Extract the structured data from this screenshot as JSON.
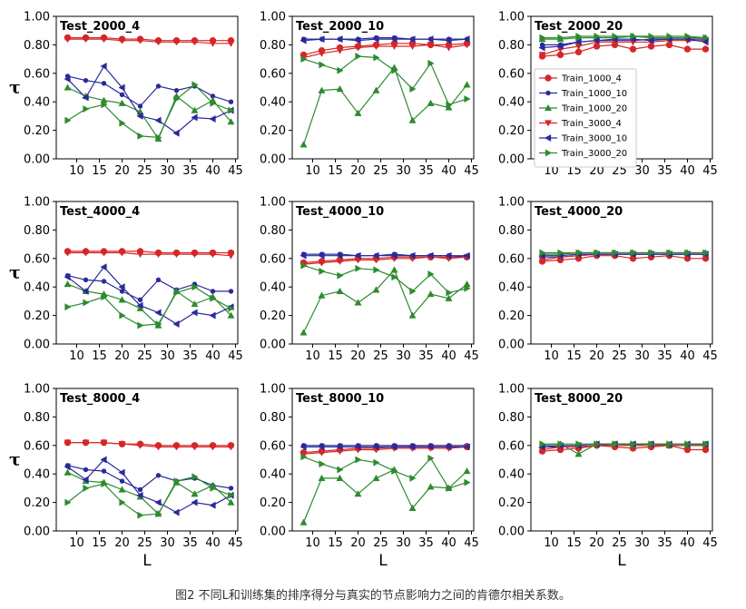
{
  "figure": {
    "caption": "图2 不同L和训练集的排序得分与真实的节点影响力之间的肯德尔相关系数。",
    "ylabel": "τ",
    "xlabel": "L"
  },
  "chart_data": {
    "type": "line",
    "x": [
      8,
      12,
      16,
      20,
      24,
      28,
      32,
      36,
      40,
      44
    ],
    "x_ticks": [
      "10",
      "15",
      "20",
      "25",
      "30",
      "35",
      "40",
      "45"
    ],
    "x_tick_values": [
      10,
      15,
      20,
      25,
      30,
      35,
      40,
      45
    ],
    "xlim": [
      5.5,
      45.5
    ],
    "ylim": [
      0,
      1.0
    ],
    "y_ticks": [
      "0.00",
      "0.20",
      "0.40",
      "0.60",
      "0.80",
      "1.00"
    ],
    "grid": false,
    "series_styles": [
      {
        "name": "Train_1000_4",
        "color": "#d62728",
        "marker": "circle"
      },
      {
        "name": "Train_1000_10",
        "color": "#2a2a9c",
        "marker": "dot"
      },
      {
        "name": "Train_1000_20",
        "color": "#2e8b2e",
        "marker": "triangle"
      },
      {
        "name": "Train_3000_4",
        "color": "#d62728",
        "marker": "dtriangle"
      },
      {
        "name": "Train_3000_10",
        "color": "#2a2a9c",
        "marker": "ltriangle"
      },
      {
        "name": "Train_3000_20",
        "color": "#2e8b2e",
        "marker": "rtriangle"
      }
    ],
    "panels": [
      {
        "title": "Test_2000_4",
        "series": [
          [
            0.85,
            0.85,
            0.85,
            0.84,
            0.84,
            0.83,
            0.83,
            0.83,
            0.83,
            0.83
          ],
          [
            0.58,
            0.55,
            0.53,
            0.45,
            0.37,
            0.51,
            0.48,
            0.51,
            0.44,
            0.4
          ],
          [
            0.5,
            0.44,
            0.41,
            0.39,
            0.33,
            0.14,
            0.44,
            0.34,
            0.41,
            0.26
          ],
          [
            0.84,
            0.84,
            0.84,
            0.83,
            0.83,
            0.82,
            0.82,
            0.82,
            0.81,
            0.81
          ],
          [
            0.56,
            0.43,
            0.65,
            0.5,
            0.3,
            0.27,
            0.18,
            0.29,
            0.28,
            0.34
          ],
          [
            0.27,
            0.35,
            0.38,
            0.25,
            0.16,
            0.15,
            0.42,
            0.52,
            0.39,
            0.34
          ]
        ]
      },
      {
        "title": "Test_2000_10",
        "series": [
          [
            0.73,
            0.76,
            0.78,
            0.79,
            0.8,
            0.81,
            0.81,
            0.8,
            0.8,
            0.81
          ],
          [
            0.84,
            0.84,
            0.84,
            0.84,
            0.85,
            0.85,
            0.84,
            0.84,
            0.84,
            0.84
          ],
          [
            0.1,
            0.48,
            0.49,
            0.32,
            0.48,
            0.64,
            0.27,
            0.39,
            0.36,
            0.52
          ],
          [
            0.71,
            0.74,
            0.76,
            0.78,
            0.79,
            0.79,
            0.79,
            0.8,
            0.78,
            0.8
          ],
          [
            0.83,
            0.84,
            0.84,
            0.83,
            0.84,
            0.84,
            0.84,
            0.84,
            0.83,
            0.84
          ],
          [
            0.7,
            0.66,
            0.62,
            0.72,
            0.71,
            0.62,
            0.49,
            0.67,
            0.38,
            0.42
          ]
        ]
      },
      {
        "title": "Test_2000_20",
        "series": [
          [
            0.72,
            0.73,
            0.75,
            0.79,
            0.8,
            0.77,
            0.79,
            0.8,
            0.77,
            0.77
          ],
          [
            0.8,
            0.8,
            0.82,
            0.83,
            0.83,
            0.83,
            0.84,
            0.84,
            0.84,
            0.84
          ],
          [
            0.84,
            0.84,
            0.85,
            0.85,
            0.85,
            0.86,
            0.85,
            0.85,
            0.85,
            0.85
          ],
          [
            0.73,
            0.77,
            0.79,
            0.82,
            0.82,
            0.82,
            0.82,
            0.83,
            0.83,
            0.83
          ],
          [
            0.78,
            0.79,
            0.82,
            0.83,
            0.84,
            0.84,
            0.83,
            0.84,
            0.84,
            0.82
          ],
          [
            0.85,
            0.85,
            0.86,
            0.86,
            0.86,
            0.86,
            0.86,
            0.86,
            0.86,
            0.85
          ]
        ]
      },
      {
        "title": "Test_4000_4",
        "series": [
          [
            0.65,
            0.65,
            0.65,
            0.65,
            0.65,
            0.64,
            0.64,
            0.64,
            0.64,
            0.64
          ],
          [
            0.48,
            0.45,
            0.44,
            0.37,
            0.31,
            0.45,
            0.38,
            0.42,
            0.37,
            0.37
          ],
          [
            0.42,
            0.37,
            0.35,
            0.31,
            0.25,
            0.13,
            0.37,
            0.28,
            0.33,
            0.2
          ],
          [
            0.64,
            0.64,
            0.64,
            0.64,
            0.63,
            0.63,
            0.63,
            0.63,
            0.63,
            0.62
          ],
          [
            0.47,
            0.37,
            0.54,
            0.4,
            0.27,
            0.22,
            0.14,
            0.22,
            0.2,
            0.26
          ],
          [
            0.26,
            0.29,
            0.33,
            0.2,
            0.13,
            0.14,
            0.36,
            0.4,
            0.32,
            0.25
          ]
        ]
      },
      {
        "title": "Test_4000_10",
        "series": [
          [
            0.57,
            0.58,
            0.59,
            0.6,
            0.6,
            0.61,
            0.61,
            0.61,
            0.61,
            0.61
          ],
          [
            0.63,
            0.63,
            0.63,
            0.62,
            0.62,
            0.63,
            0.62,
            0.62,
            0.62,
            0.61
          ],
          [
            0.08,
            0.34,
            0.37,
            0.29,
            0.38,
            0.52,
            0.2,
            0.35,
            0.32,
            0.42
          ],
          [
            0.56,
            0.57,
            0.58,
            0.59,
            0.59,
            0.6,
            0.6,
            0.61,
            0.6,
            0.61
          ],
          [
            0.62,
            0.62,
            0.62,
            0.62,
            0.62,
            0.62,
            0.62,
            0.62,
            0.62,
            0.62
          ],
          [
            0.55,
            0.51,
            0.48,
            0.53,
            0.52,
            0.47,
            0.37,
            0.49,
            0.36,
            0.39
          ]
        ]
      },
      {
        "title": "Test_4000_20",
        "series": [
          [
            0.58,
            0.59,
            0.6,
            0.62,
            0.62,
            0.6,
            0.61,
            0.62,
            0.6,
            0.6
          ],
          [
            0.61,
            0.61,
            0.62,
            0.63,
            0.63,
            0.63,
            0.63,
            0.63,
            0.63,
            0.63
          ],
          [
            0.63,
            0.63,
            0.64,
            0.64,
            0.64,
            0.64,
            0.64,
            0.64,
            0.64,
            0.64
          ],
          [
            0.59,
            0.61,
            0.62,
            0.63,
            0.63,
            0.63,
            0.63,
            0.63,
            0.63,
            0.63
          ],
          [
            0.62,
            0.62,
            0.63,
            0.63,
            0.63,
            0.63,
            0.63,
            0.63,
            0.63,
            0.63
          ],
          [
            0.64,
            0.64,
            0.64,
            0.64,
            0.64,
            0.64,
            0.64,
            0.64,
            0.64,
            0.64
          ]
        ]
      },
      {
        "title": "Test_8000_4",
        "series": [
          [
            0.62,
            0.62,
            0.62,
            0.61,
            0.61,
            0.6,
            0.6,
            0.6,
            0.6,
            0.6
          ],
          [
            0.46,
            0.43,
            0.42,
            0.35,
            0.29,
            0.39,
            0.35,
            0.37,
            0.32,
            0.3
          ],
          [
            0.41,
            0.35,
            0.34,
            0.29,
            0.24,
            0.12,
            0.34,
            0.26,
            0.32,
            0.2
          ],
          [
            0.62,
            0.62,
            0.62,
            0.61,
            0.6,
            0.59,
            0.59,
            0.59,
            0.59,
            0.59
          ],
          [
            0.45,
            0.36,
            0.5,
            0.41,
            0.25,
            0.2,
            0.13,
            0.2,
            0.18,
            0.25
          ],
          [
            0.2,
            0.3,
            0.33,
            0.2,
            0.11,
            0.12,
            0.35,
            0.38,
            0.3,
            0.25
          ]
        ]
      },
      {
        "title": "Test_8000_10",
        "series": [
          [
            0.55,
            0.56,
            0.57,
            0.58,
            0.58,
            0.59,
            0.59,
            0.59,
            0.59,
            0.59
          ],
          [
            0.6,
            0.6,
            0.6,
            0.6,
            0.6,
            0.6,
            0.6,
            0.6,
            0.6,
            0.6
          ],
          [
            0.06,
            0.37,
            0.37,
            0.26,
            0.37,
            0.43,
            0.16,
            0.31,
            0.3,
            0.42
          ],
          [
            0.54,
            0.55,
            0.56,
            0.57,
            0.57,
            0.58,
            0.58,
            0.58,
            0.58,
            0.59
          ],
          [
            0.59,
            0.59,
            0.59,
            0.59,
            0.59,
            0.59,
            0.59,
            0.59,
            0.59,
            0.59
          ],
          [
            0.52,
            0.47,
            0.43,
            0.5,
            0.48,
            0.42,
            0.37,
            0.51,
            0.3,
            0.34
          ]
        ]
      },
      {
        "title": "Test_8000_20",
        "series": [
          [
            0.56,
            0.57,
            0.58,
            0.6,
            0.59,
            0.58,
            0.59,
            0.6,
            0.57,
            0.57
          ],
          [
            0.59,
            0.59,
            0.59,
            0.6,
            0.61,
            0.61,
            0.61,
            0.6,
            0.6,
            0.6
          ],
          [
            0.6,
            0.61,
            0.54,
            0.61,
            0.61,
            0.6,
            0.61,
            0.6,
            0.6,
            0.61
          ],
          [
            0.57,
            0.59,
            0.59,
            0.6,
            0.6,
            0.6,
            0.6,
            0.6,
            0.6,
            0.6
          ],
          [
            0.59,
            0.6,
            0.6,
            0.61,
            0.61,
            0.61,
            0.61,
            0.61,
            0.61,
            0.61
          ],
          [
            0.61,
            0.61,
            0.61,
            0.61,
            0.61,
            0.61,
            0.61,
            0.61,
            0.61,
            0.61
          ]
        ]
      }
    ]
  }
}
